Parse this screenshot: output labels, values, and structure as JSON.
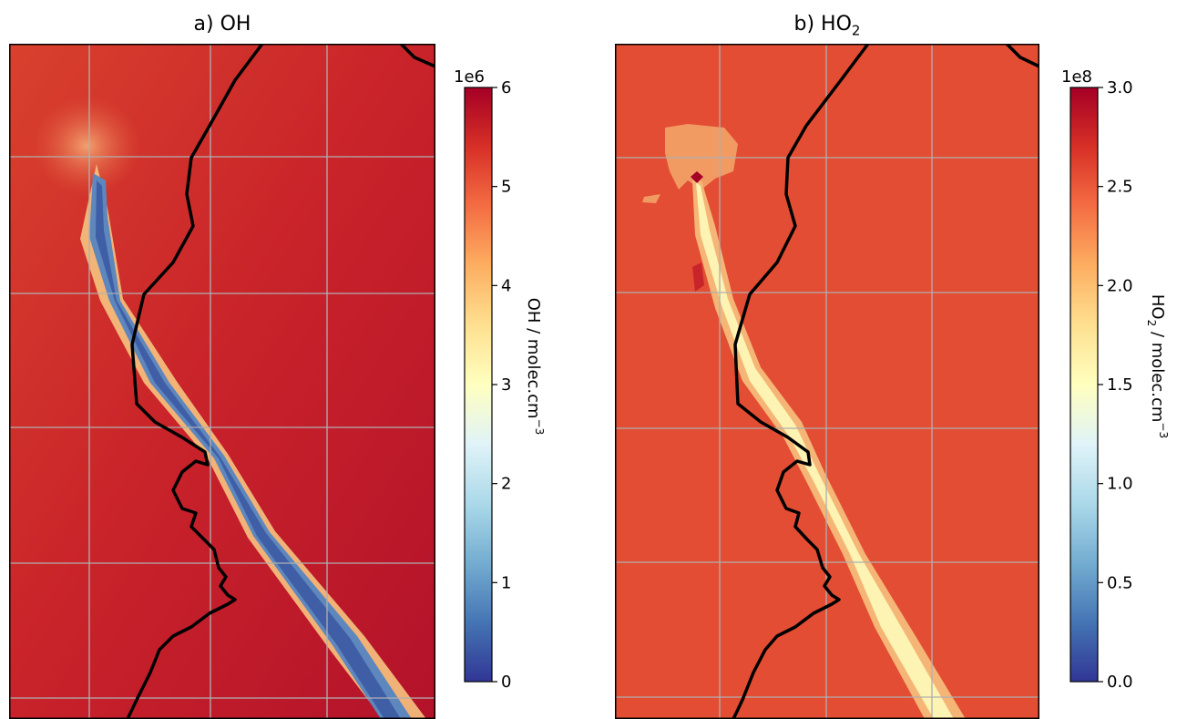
{
  "figure": {
    "colors": {
      "background_oh": "#cf2a2a",
      "background_ho2": "#e34d33",
      "coastline": "#000000",
      "grid": "#b0b0b0"
    },
    "colormap": "RdYlBu_r"
  },
  "chart_data": [
    {
      "type": "heatmap",
      "title": "a) OH",
      "title_parts": {
        "base": "a) OH",
        "sub": "",
        "tail": ""
      },
      "colorbar": {
        "label": "OH / molec.cm",
        "label_sup": "−3",
        "scale": "1e6",
        "ticks": [
          "0",
          "1",
          "2",
          "3",
          "4",
          "5",
          "6"
        ],
        "range": [
          0,
          6
        ]
      },
      "background_level": 5.5,
      "plume_core_level": 1.2,
      "plume_edge_level": 4.0,
      "grid": true
    },
    {
      "type": "heatmap",
      "title": "b) HO2",
      "title_parts": {
        "base": "b) HO",
        "sub": "2",
        "tail": ""
      },
      "colorbar": {
        "label_pre": "HO",
        "label_sub": "2",
        "label": " / molec.cm",
        "label_sup": "−3",
        "scale": "1e8",
        "ticks": [
          "0.0",
          "0.5",
          "1.0",
          "1.5",
          "2.0",
          "2.5",
          "3.0"
        ],
        "range": [
          0,
          3
        ]
      },
      "background_level": 2.55,
      "plume_core_level": 1.55,
      "grid": true
    }
  ]
}
